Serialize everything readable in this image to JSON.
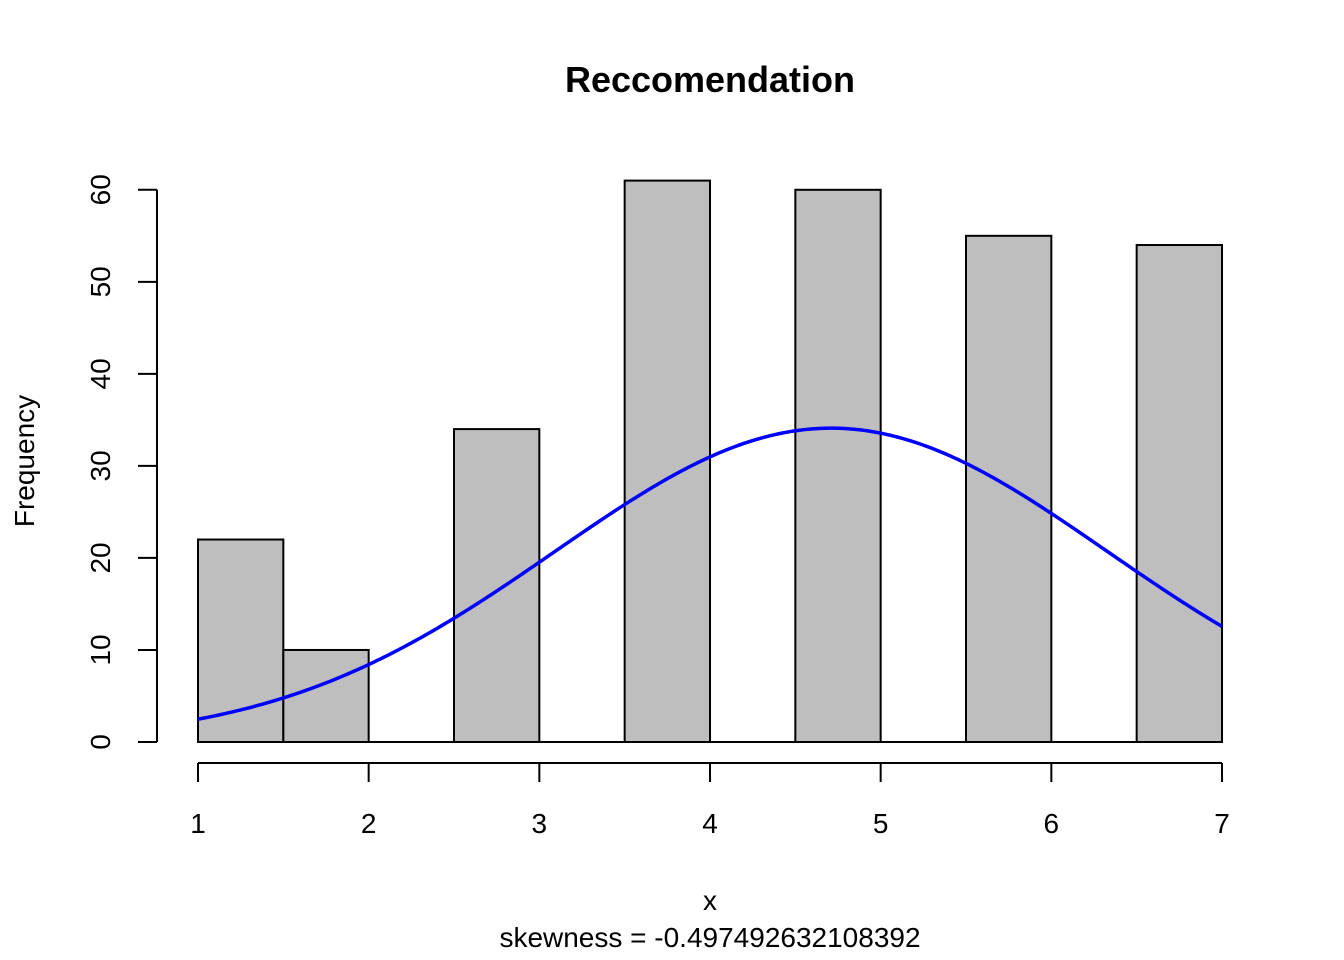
{
  "chart_data": {
    "type": "bar",
    "title": "Reccomendation",
    "xlabel": "x",
    "ylabel": "Frequency",
    "subtitle": "skewness = -0.497492632108392",
    "xlim": [
      1,
      7
    ],
    "ylim": [
      0,
      60
    ],
    "x_ticks": [
      "1",
      "2",
      "3",
      "4",
      "5",
      "6",
      "7"
    ],
    "y_ticks": [
      "0",
      "10",
      "20",
      "30",
      "40",
      "50",
      "60"
    ],
    "bins": [
      {
        "start": 1.0,
        "end": 1.5,
        "value": 22
      },
      {
        "start": 1.5,
        "end": 2.0,
        "value": 10
      },
      {
        "start": 2.0,
        "end": 2.5,
        "value": 0
      },
      {
        "start": 2.5,
        "end": 3.0,
        "value": 34
      },
      {
        "start": 3.0,
        "end": 3.5,
        "value": 0
      },
      {
        "start": 3.5,
        "end": 4.0,
        "value": 61
      },
      {
        "start": 4.0,
        "end": 4.5,
        "value": 0
      },
      {
        "start": 4.5,
        "end": 5.0,
        "value": 60
      },
      {
        "start": 5.0,
        "end": 5.5,
        "value": 0
      },
      {
        "start": 5.5,
        "end": 6.0,
        "value": 55
      },
      {
        "start": 6.0,
        "end": 6.5,
        "value": 0
      },
      {
        "start": 6.5,
        "end": 7.0,
        "value": 54
      }
    ],
    "bar_color": "#bebebe",
    "curve": {
      "type": "normal-density",
      "color": "#0000ff",
      "peak_x": 4.71,
      "peak_y": 34.1,
      "sd": 1.62
    }
  }
}
